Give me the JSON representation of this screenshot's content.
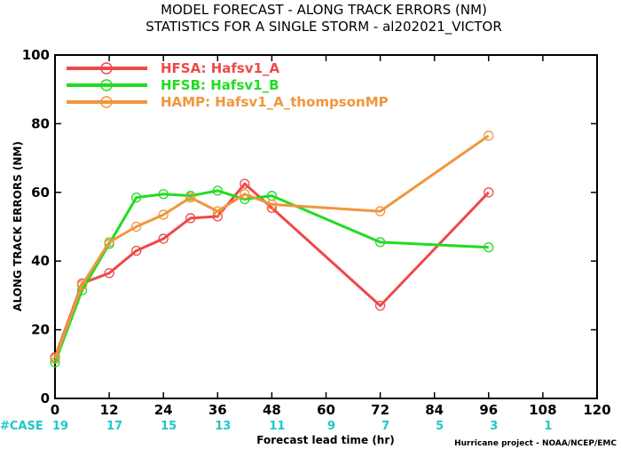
{
  "chart_data": {
    "type": "line",
    "title": "MODEL FORECAST - ALONG TRACK ERRORS (NM)",
    "subtitle": "STATISTICS FOR A SINGLE STORM - al202021_VICTOR",
    "xlabel": "Forecast lead time (hr)",
    "ylabel": "ALONG TRACK ERRORS (NM)",
    "xlim": [
      0,
      120
    ],
    "ylim": [
      0,
      100
    ],
    "x_ticks": [
      0,
      12,
      24,
      36,
      48,
      60,
      72,
      84,
      96,
      108,
      120
    ],
    "y_ticks": [
      0,
      20,
      40,
      60,
      80,
      100
    ],
    "legend_position": "top-left",
    "grid": false,
    "series": [
      {
        "name": "HFSA: Hafsv1_A",
        "color": "#f04848",
        "x": [
          0,
          6,
          12,
          18,
          24,
          30,
          36,
          42,
          48,
          72,
          96
        ],
        "y": [
          12,
          33.5,
          36.5,
          43,
          46.5,
          52.5,
          53,
          62.5,
          55.5,
          27,
          60
        ]
      },
      {
        "name": "HFSB: Hafsv1_B",
        "color": "#22dc22",
        "x": [
          0,
          6,
          12,
          18,
          24,
          30,
          36,
          42,
          48,
          72,
          96
        ],
        "y": [
          10.5,
          31.5,
          45,
          58.5,
          59.5,
          59,
          60.5,
          58,
          59,
          45.5,
          44
        ]
      },
      {
        "name": "HAMP: Hafsv1_A_thompsonMP",
        "color": "#f0963c",
        "x": [
          0,
          6,
          12,
          18,
          24,
          30,
          36,
          42,
          48,
          72,
          96
        ],
        "y": [
          11.5,
          33,
          45.5,
          50,
          53.5,
          58.5,
          54.5,
          59.5,
          56.5,
          54.5,
          76.5
        ]
      }
    ],
    "case_label": "#CASE",
    "case_counts": [
      {
        "x": 0,
        "count": "19"
      },
      {
        "x": 12,
        "count": "17"
      },
      {
        "x": 24,
        "count": "15"
      },
      {
        "x": 36,
        "count": "13"
      },
      {
        "x": 48,
        "count": "11"
      },
      {
        "x": 60,
        "count": "9"
      },
      {
        "x": 72,
        "count": "7"
      },
      {
        "x": 84,
        "count": "5"
      },
      {
        "x": 96,
        "count": "3"
      },
      {
        "x": 108,
        "count": "1"
      }
    ],
    "case_color": "#1ec8c8",
    "credit": "Hurricane project - NOAA/NCEP/EMC"
  }
}
